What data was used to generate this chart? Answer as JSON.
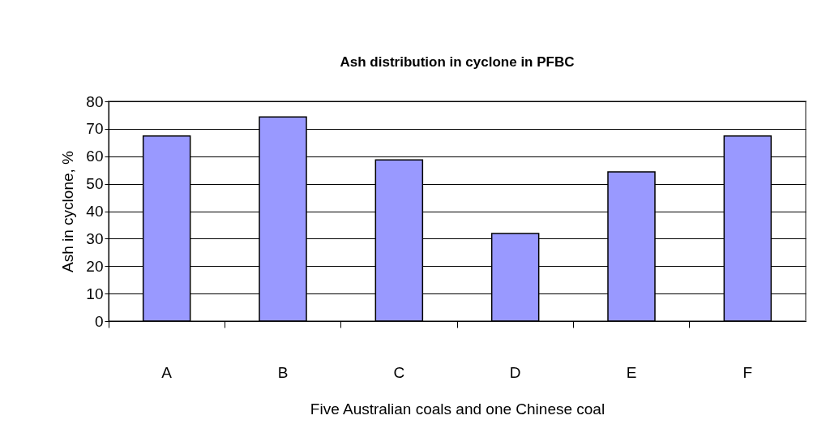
{
  "chart_data": {
    "type": "bar",
    "title": "Ash distribution in cyclone in PFBC",
    "xlabel": "Five Australian coals and one Chinese coal",
    "ylabel": "Ash in cyclone, %",
    "categories": [
      "A",
      "B",
      "C",
      "D",
      "E",
      "F"
    ],
    "values": [
      67.4,
      74.3,
      58.7,
      31.9,
      54.3,
      67.4
    ],
    "color": "#9999ff",
    "ylim": [
      0,
      80
    ],
    "yticks": [
      0,
      10,
      20,
      30,
      40,
      50,
      60,
      70,
      80
    ],
    "grid": "y"
  }
}
